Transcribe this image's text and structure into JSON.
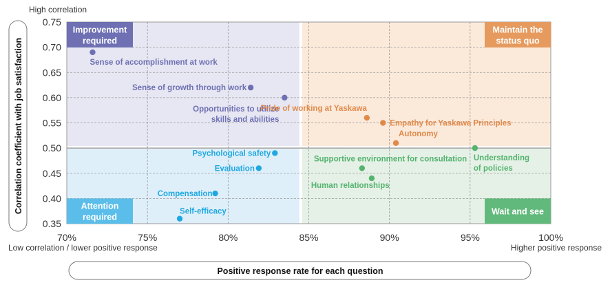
{
  "chart_data": {
    "type": "scatter",
    "xlabel": "Positive response rate for each question",
    "ylabel": "Correlation coefficient with job satisfaction",
    "xlim": [
      70,
      100
    ],
    "ylim": [
      0.35,
      0.75
    ],
    "x_ticks": [
      "70%",
      "75%",
      "80%",
      "85%",
      "90%",
      "95%",
      "100%"
    ],
    "y_ticks": [
      "0.35",
      "0.40",
      "0.45",
      "0.50",
      "0.55",
      "0.60",
      "0.65",
      "0.70",
      "0.75"
    ],
    "grid": true,
    "annotations": {
      "top_left": "High correlation",
      "bottom_left": "Low correlation / lower positive response",
      "bottom_right": "Higher positive response"
    },
    "quadrant_split": {
      "x": 84.5,
      "y": 0.5
    },
    "quadrants": [
      {
        "name": "Improvement required",
        "lines": [
          "Improvement",
          "required"
        ],
        "position": "top-left",
        "color": "#6e70b3",
        "bg": "#e7e7f3"
      },
      {
        "name": "Maintain the status quo",
        "lines": [
          "Maintain the",
          "status quo"
        ],
        "position": "top-right",
        "color": "#e69a5e",
        "bg": "#fbe9da"
      },
      {
        "name": "Attention required",
        "lines": [
          "Attention",
          "required"
        ],
        "position": "bottom-left",
        "color": "#5bbde9",
        "bg": "#dfeffa"
      },
      {
        "name": "Wait and see",
        "lines": [
          "Wait and see"
        ],
        "position": "bottom-right",
        "color": "#62b97c",
        "bg": "#e5f1e6"
      }
    ],
    "points": [
      {
        "label": [
          "Sense of accomplishment at work"
        ],
        "x": 71.6,
        "y": 0.69,
        "group": "top-left"
      },
      {
        "label": [
          "Sense of growth through work"
        ],
        "x": 81.4,
        "y": 0.62,
        "group": "top-left"
      },
      {
        "label": [
          "Opportunities to utilize",
          "skills and abilities"
        ],
        "x": 83.5,
        "y": 0.6,
        "group": "top-left"
      },
      {
        "label": [
          "Pride of working at Yaskawa"
        ],
        "x": 88.6,
        "y": 0.56,
        "group": "top-right"
      },
      {
        "label": [
          "Empathy for Yaskawa Principles"
        ],
        "x": 89.6,
        "y": 0.55,
        "group": "top-right"
      },
      {
        "label": [
          "Autonomy"
        ],
        "x": 90.4,
        "y": 0.51,
        "group": "top-right"
      },
      {
        "label": [
          "Understanding",
          "of policies"
        ],
        "x": 95.3,
        "y": 0.5,
        "group": "bottom-right"
      },
      {
        "label": [
          "Supportive environment for consultation"
        ],
        "x": 88.3,
        "y": 0.46,
        "group": "bottom-right"
      },
      {
        "label": [
          "Human relationships"
        ],
        "x": 88.9,
        "y": 0.44,
        "group": "bottom-right"
      },
      {
        "label": [
          "Psychological safety"
        ],
        "x": 82.9,
        "y": 0.49,
        "group": "bottom-left"
      },
      {
        "label": [
          "Evaluation"
        ],
        "x": 81.9,
        "y": 0.46,
        "group": "bottom-left"
      },
      {
        "label": [
          "Compensation"
        ],
        "x": 79.2,
        "y": 0.41,
        "group": "bottom-left"
      },
      {
        "label": [
          "Self-efficacy"
        ],
        "x": 77.0,
        "y": 0.36,
        "group": "bottom-left"
      }
    ],
    "colors": {
      "top-left": "#6e70b3",
      "top-right": "#e08a4a",
      "bottom-left": "#1fa8e0",
      "bottom-right": "#55b370"
    }
  }
}
